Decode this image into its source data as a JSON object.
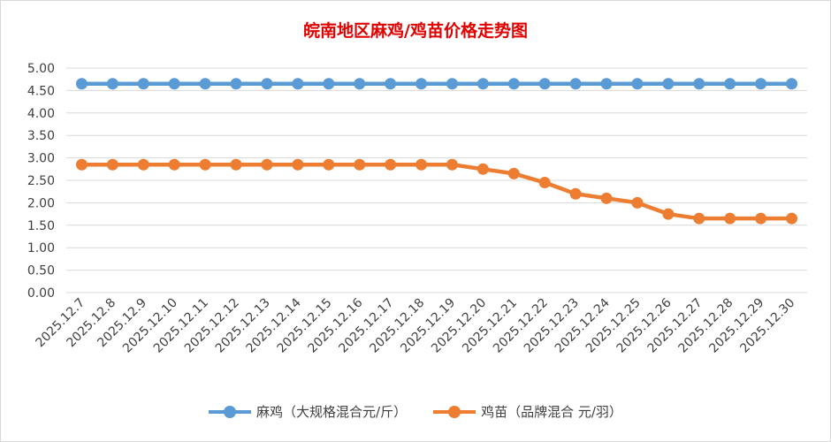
{
  "chart_data": {
    "type": "line",
    "title": "皖南地区麻鸡/鸡苗价格走势图",
    "xlabel": "",
    "ylabel": "",
    "ylim": [
      0,
      5
    ],
    "yticks": [
      "0.00",
      "0.50",
      "1.00",
      "1.50",
      "2.00",
      "2.50",
      "3.00",
      "3.50",
      "4.00",
      "4.50",
      "5.00"
    ],
    "grid": true,
    "legend": "bottom",
    "categories": [
      "2025.12.7",
      "2025.12.8",
      "2025.12.9",
      "2025.12.10",
      "2025.12.11",
      "2025.12.12",
      "2025.12.13",
      "2025.12.14",
      "2025.12.15",
      "2025.12.16",
      "2025.12.17",
      "2025.12.18",
      "2025.12.19",
      "2025.12.20",
      "2025.12.21",
      "2025.12.22",
      "2025.12.23",
      "2025.12.24",
      "2025.12.25",
      "2025.12.26",
      "2025.12.27",
      "2025.12.28",
      "2025.12.29",
      "2025.12.30"
    ],
    "series": [
      {
        "name": "麻鸡（大规格混合元/斤）",
        "color": "#5b9bd5",
        "values": [
          4.65,
          4.65,
          4.65,
          4.65,
          4.65,
          4.65,
          4.65,
          4.65,
          4.65,
          4.65,
          4.65,
          4.65,
          4.65,
          4.65,
          4.65,
          4.65,
          4.65,
          4.65,
          4.65,
          4.65,
          4.65,
          4.65,
          4.65,
          4.65
        ]
      },
      {
        "name": "鸡苗（品牌混合 元/羽）",
        "color": "#ed7d31",
        "values": [
          2.85,
          2.85,
          2.85,
          2.85,
          2.85,
          2.85,
          2.85,
          2.85,
          2.85,
          2.85,
          2.85,
          2.85,
          2.85,
          2.75,
          2.65,
          2.45,
          2.2,
          2.1,
          2.0,
          1.75,
          1.65,
          1.65,
          1.65,
          1.65
        ]
      }
    ]
  }
}
